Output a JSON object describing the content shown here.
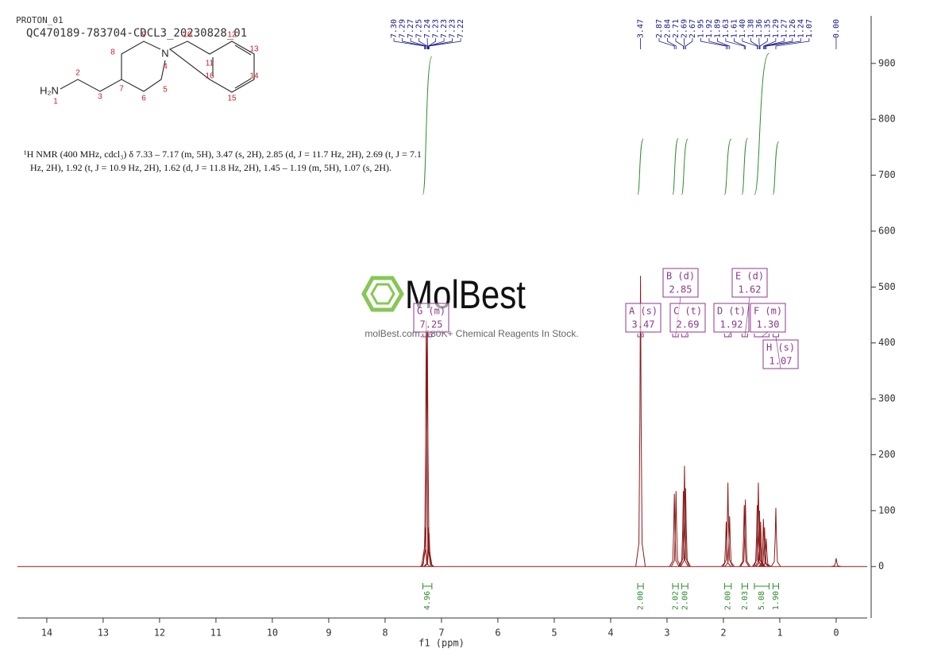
{
  "chart_data": {
    "type": "nmr",
    "title": "PROTON_01",
    "subtitle": "QC470189-783704-CDCL3_20230828_01",
    "xlabel": "f1 (ppm)",
    "xlim": [
      14.52,
      -0.55
    ],
    "xticks": [
      14,
      13,
      12,
      11,
      10,
      9,
      8,
      7,
      6,
      5,
      4,
      3,
      2,
      1,
      0
    ],
    "ylim": [
      -92,
      985
    ],
    "yticks": [
      0,
      100,
      200,
      300,
      400,
      500,
      600,
      700,
      800,
      900
    ],
    "color": "#8b1a1a",
    "peaks": {
      "x": [
        7.29,
        7.27,
        7.25,
        7.23,
        7.22,
        3.47,
        2.87,
        2.84,
        2.71,
        2.69,
        2.67,
        1.95,
        1.92,
        1.89,
        1.63,
        1.61,
        1.4,
        1.38,
        1.36,
        1.34,
        1.29,
        1.27,
        1.24,
        1.07,
        0.0
      ],
      "values": [
        70,
        440,
        420,
        70,
        60,
        520,
        130,
        135,
        135,
        180,
        140,
        80,
        150,
        90,
        110,
        120,
        110,
        150,
        100,
        80,
        85,
        70,
        50,
        105,
        15
      ]
    },
    "peak_labels": [
      {
        "value": 7.3,
        "label": "7.30"
      },
      7.29,
      7.27,
      7.25,
      7.24,
      7.23,
      7.23,
      7.23,
      7.22,
      3.47,
      2.87,
      2.84,
      2.71,
      2.69,
      2.67,
      1.95,
      1.92,
      1.89,
      1.63,
      1.61,
      {
        "value": 1.4,
        "label": "1.40"
      },
      1.38,
      1.36,
      1.35,
      1.29,
      1.27,
      1.26,
      1.24,
      1.07,
      {
        "value": 0,
        "label": "0.00"
      }
    ],
    "multiplets": [
      {
        "name": "G (m)",
        "shift": 7.25,
        "range": [
          7.33,
          7.17
        ]
      },
      {
        "name": "A (s)",
        "shift": 3.47,
        "range": [
          3.52,
          3.42
        ]
      },
      {
        "name": "B (d)",
        "shift": 2.85,
        "range": [
          2.9,
          2.8
        ]
      },
      {
        "name": "C (t)",
        "shift": 2.69,
        "range": [
          2.74,
          2.63
        ]
      },
      {
        "name": "D (t)",
        "shift": 1.92,
        "range": [
          1.98,
          1.86
        ]
      },
      {
        "name": "E (d)",
        "shift": 1.62,
        "range": [
          1.67,
          1.57
        ]
      },
      {
        "name": "F (m)",
        "shift": {
          "value": 1.3,
          "label": "1.30"
        },
        "range": [
          1.45,
          1.19
        ]
      },
      {
        "name": "H (s)",
        "shift": 1.07,
        "range": [
          1.12,
          1.02
        ]
      }
    ],
    "integrals": [
      {
        "value": 4.96,
        "range": [
          7.33,
          7.17
        ]
      },
      {
        "value": {
          "value": 2,
          "label": "2.00"
        },
        "range": [
          3.52,
          3.42
        ]
      },
      {
        "value": 2.02,
        "range": [
          2.9,
          2.8
        ]
      },
      {
        "value": {
          "value": 2,
          "label": "2.00"
        },
        "range": [
          2.74,
          2.63
        ]
      },
      {
        "value": {
          "value": 2,
          "label": "2.00"
        },
        "range": [
          1.98,
          1.86
        ]
      },
      {
        "value": 2.03,
        "range": [
          1.67,
          1.57
        ]
      },
      {
        "value": 5.08,
        "range": [
          1.45,
          1.19
        ]
      },
      {
        "value": {
          "value": 1.9,
          "label": "1.90"
        },
        "range": [
          1.12,
          1.02
        ]
      }
    ],
    "description": [
      "¹H NMR (400 MHz, cdcl₃) δ 7.33 – 7.17 (m, 5H), 3.47 (s, 2H), 2.85 (d, J = 11.7 Hz, 2H), 2.69 (t, J = 7.1",
      "Hz, 2H), 1.92 (t, J = 10.9 Hz, 2H), 1.62 (d, J = 11.8 Hz, 2H), 1.45 – 1.19 (m, 5H), 1.07 (s, 2H)."
    ],
    "molecule": {
      "amine": "H₂N",
      "nitrogen": "N",
      "atom_numbers": [
        1,
        2,
        3,
        4,
        5,
        6,
        7,
        8,
        9,
        10,
        11,
        12,
        13,
        14,
        15,
        16
      ]
    },
    "watermark": {
      "brand": "MolBest",
      "tagline": "molBest.com, 180K+ Chemical Reagents In Stock."
    }
  }
}
